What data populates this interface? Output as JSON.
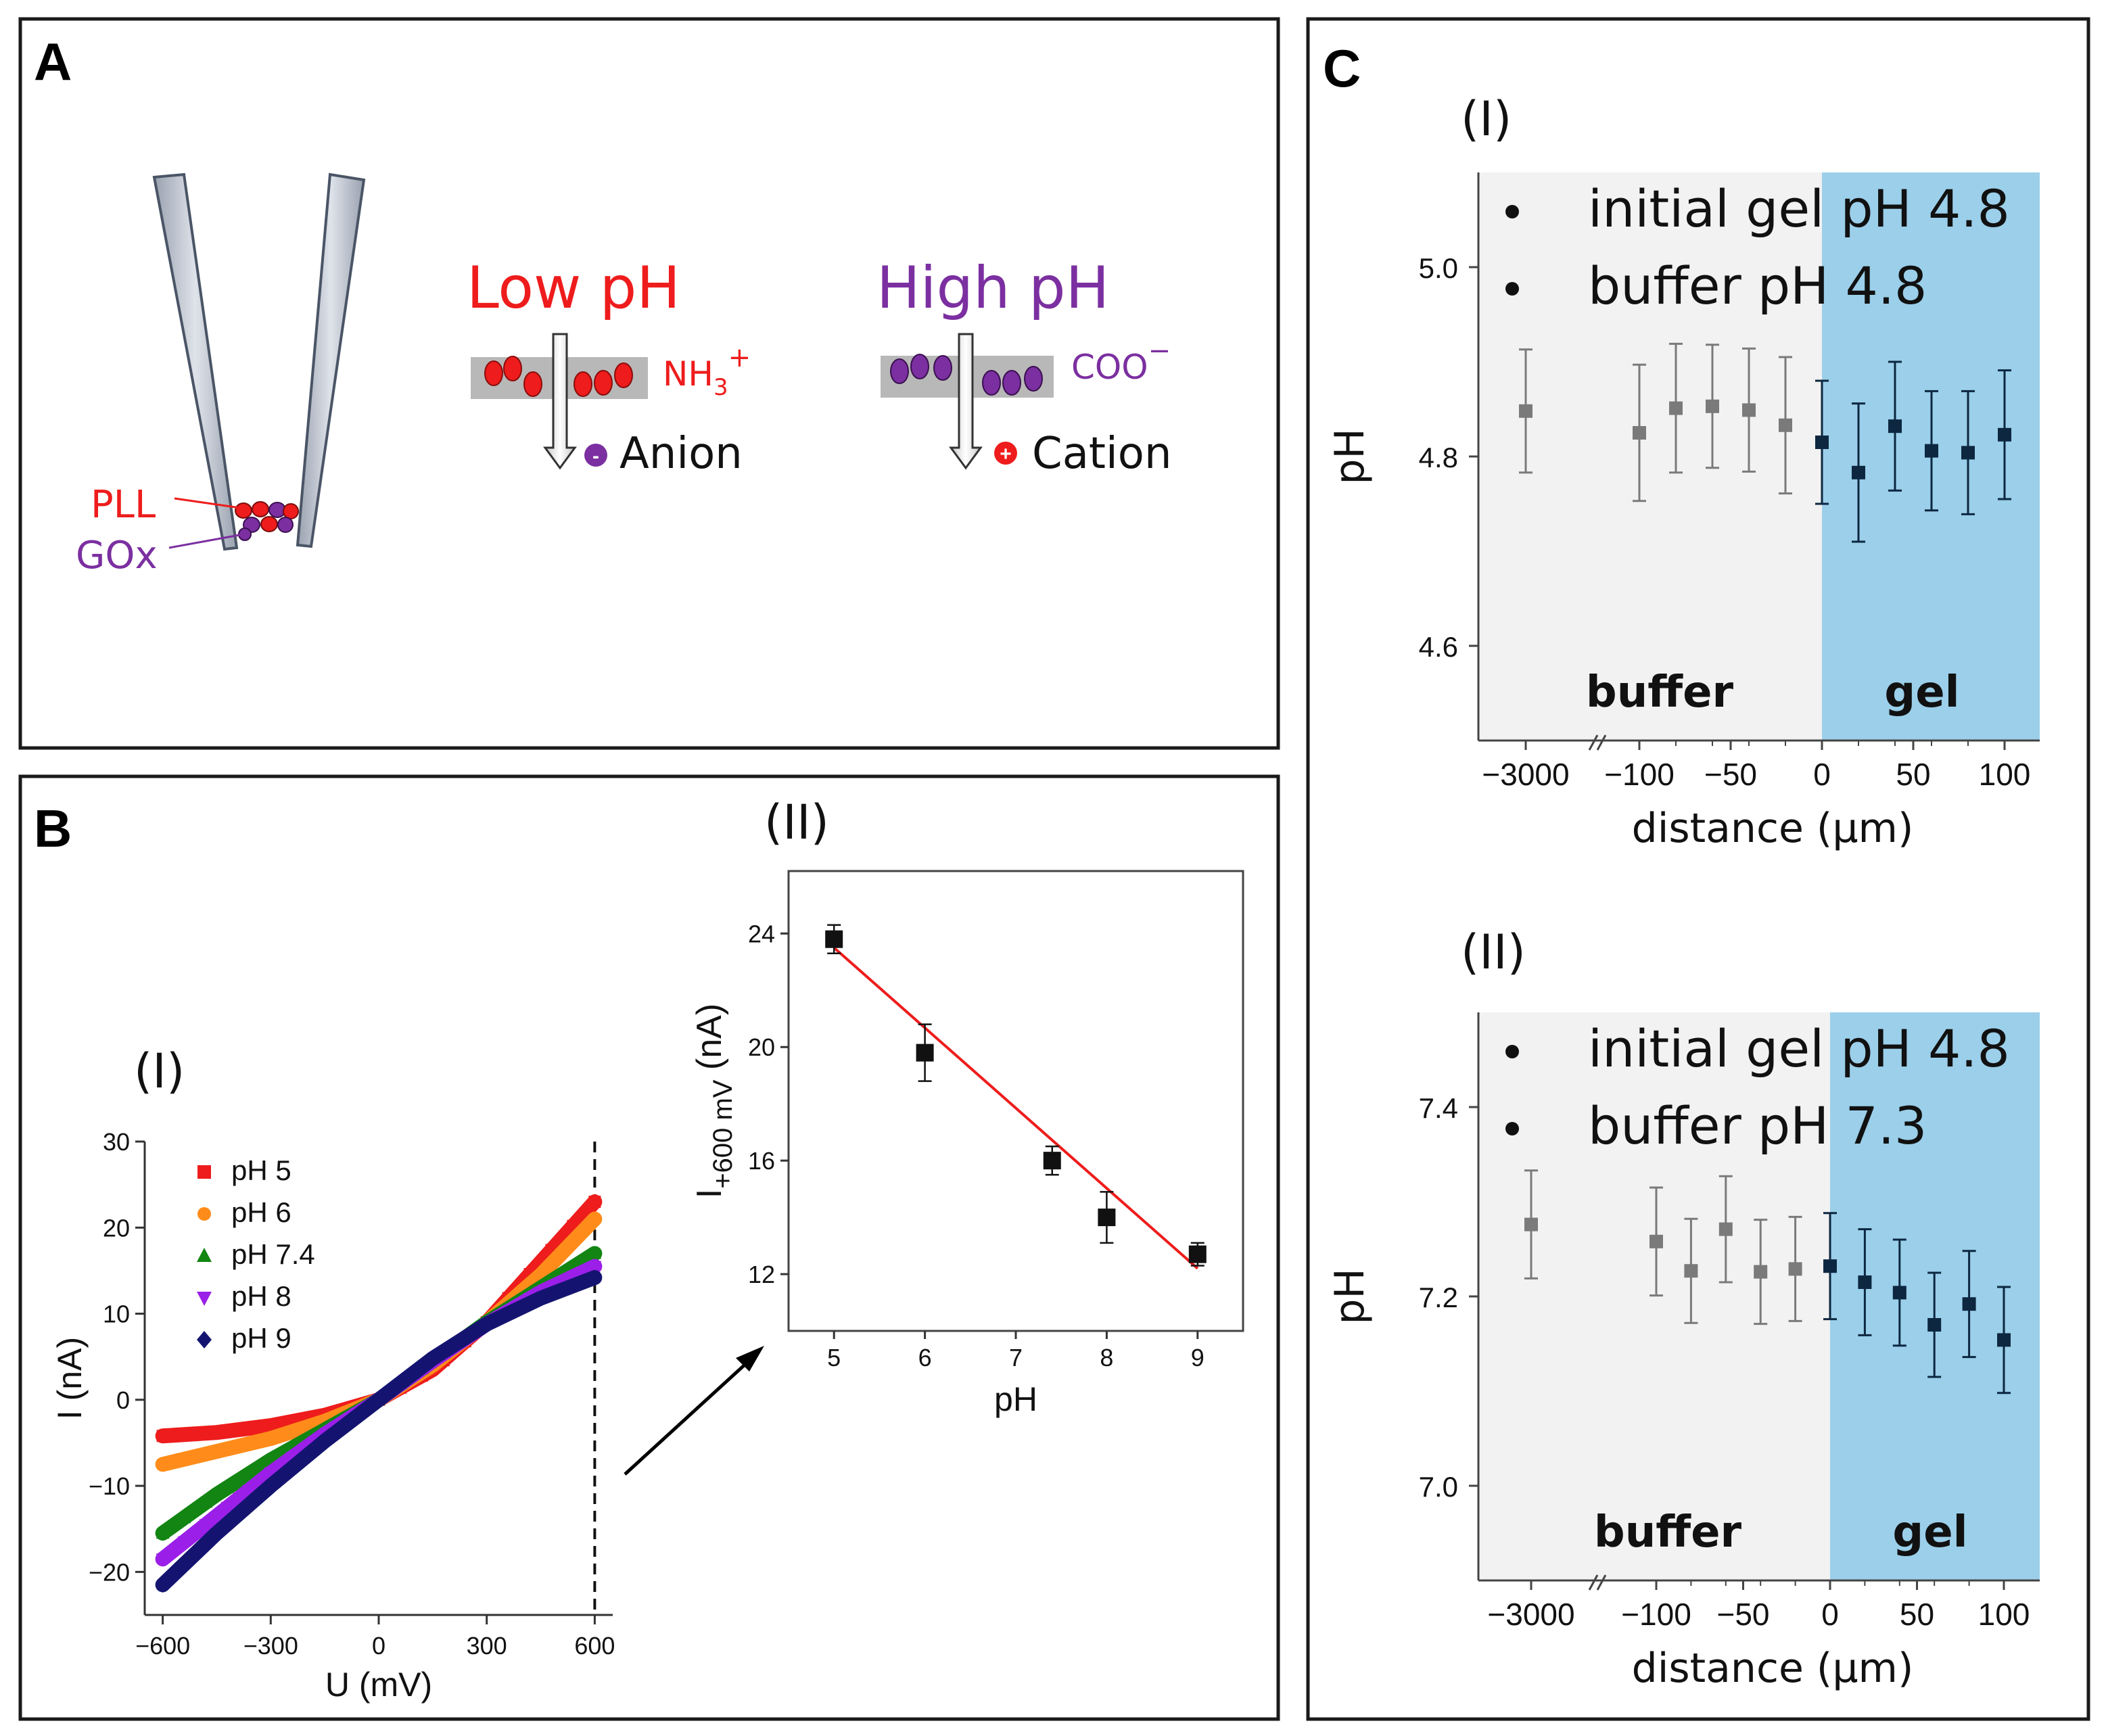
{
  "panels": {
    "A": {
      "letter": "A",
      "low_ph": "Low pH",
      "high_ph": "High pH",
      "nh3": "NH",
      "nh3_sub": "3",
      "nh3_sup": "+",
      "coo": "COO",
      "coo_sup": "−",
      "anion": "Anion",
      "cation": "Cation",
      "anion_sign": "-",
      "cation_sign": "+",
      "pll": "PLL",
      "gox": "GOx"
    },
    "B": {
      "letter": "B",
      "sub_i": "(I)",
      "sub_ii": "(II)"
    },
    "C": {
      "letter": "C",
      "sub_i": "(I)",
      "sub_ii": "(II)"
    }
  },
  "colors": {
    "red": "#ee1c1c",
    "purple": "#7b2fa0",
    "orange": "#ff8c1a",
    "green": "#128512",
    "violet": "#9b1fe8",
    "navy": "#141470",
    "grey_point": "#7a7a7a",
    "blue_point": "#0d2740",
    "gel_fill": "#9bcfea",
    "buffer_fill": "#f2f2f2"
  },
  "chart_data": [
    {
      "id": "B-I",
      "type": "line",
      "xlabel": "U (mV)",
      "ylabel": "I (nA)",
      "xlim": [
        -650,
        650
      ],
      "ylim": [
        -25,
        30
      ],
      "xticks": [
        -600,
        -300,
        0,
        300,
        600
      ],
      "xtick_labels": [
        "−600",
        "−300",
        "0",
        "300",
        "600"
      ],
      "yticks": [
        -20,
        -10,
        0,
        10,
        20,
        30
      ],
      "ytick_labels": [
        "−20",
        "−10",
        "0",
        "10",
        "20",
        "30"
      ],
      "marker_line_x": 600,
      "series": [
        {
          "name": "pH 5",
          "color": "#ee1c1c",
          "marker": "square",
          "x": [
            -600,
            -450,
            -300,
            -150,
            0,
            150,
            300,
            450,
            600
          ],
          "y": [
            -4.2,
            -3.8,
            -3.0,
            -1.8,
            0,
            3.5,
            9.0,
            16.0,
            23.0
          ]
        },
        {
          "name": "pH 6",
          "color": "#ff8c1a",
          "marker": "circle",
          "x": [
            -600,
            -450,
            -300,
            -150,
            0,
            150,
            300,
            450,
            600
          ],
          "y": [
            -7.5,
            -6.0,
            -4.5,
            -2.5,
            0,
            4.0,
            9.0,
            14.5,
            21.0
          ]
        },
        {
          "name": "pH 7.4",
          "color": "#128512",
          "marker": "triangle-up",
          "x": [
            -600,
            -450,
            -300,
            -150,
            0,
            150,
            300,
            450,
            600
          ],
          "y": [
            -15.5,
            -11.0,
            -7.0,
            -3.5,
            0,
            4.5,
            9.0,
            13.0,
            17.0
          ]
        },
        {
          "name": "pH 8",
          "color": "#9b1fe8",
          "marker": "triangle-down",
          "x": [
            -600,
            -450,
            -300,
            -150,
            0,
            150,
            300,
            450,
            600
          ],
          "y": [
            -18.5,
            -13.5,
            -8.5,
            -4.0,
            0,
            4.5,
            8.8,
            12.5,
            15.5
          ]
        },
        {
          "name": "pH 9",
          "color": "#141470",
          "marker": "diamond",
          "x": [
            -600,
            -450,
            -300,
            -150,
            0,
            150,
            300,
            450,
            600
          ],
          "y": [
            -21.5,
            -15.5,
            -10.0,
            -4.8,
            0,
            4.8,
            8.8,
            11.8,
            14.2
          ]
        }
      ]
    },
    {
      "id": "B-II",
      "type": "scatter",
      "xlabel": "pH",
      "ylabel_main": "I",
      "ylabel_sub": "+600 mV",
      "ylabel_unit": " (nA)",
      "xlim": [
        4.5,
        9.5
      ],
      "ylim": [
        10,
        26.2
      ],
      "xticks": [
        5,
        6,
        7,
        8,
        9
      ],
      "xtick_labels": [
        "5",
        "6",
        "7",
        "8",
        "9"
      ],
      "yticks": [
        12,
        16,
        20,
        24
      ],
      "ytick_labels": [
        "12",
        "16",
        "20",
        "24"
      ],
      "points": [
        {
          "x": 5,
          "y": 23.8,
          "err": 0.5
        },
        {
          "x": 6,
          "y": 19.8,
          "err": 1.0
        },
        {
          "x": 7.4,
          "y": 16.0,
          "err": 0.5
        },
        {
          "x": 8,
          "y": 14.0,
          "err": 0.9
        },
        {
          "x": 9,
          "y": 12.7,
          "err": 0.4
        }
      ],
      "fit": {
        "x": [
          5,
          9
        ],
        "y": [
          23.5,
          12.2
        ],
        "color": "#ee1c1c"
      }
    },
    {
      "id": "C-I",
      "type": "scatter",
      "xlabel": "distance (µm)",
      "ylabel": "pH",
      "ylim": [
        4.5,
        5.1
      ],
      "yticks": [
        4.6,
        4.8,
        5.0
      ],
      "ytick_labels": [
        "4.6",
        "4.8",
        "5.0"
      ],
      "xtick_labels": [
        "−3000",
        "−100",
        "−50",
        "0",
        "50",
        "100"
      ],
      "legend": [
        "initial gel pH 4.8",
        "buffer pH 4.8"
      ],
      "region_labels": {
        "buffer": "buffer",
        "gel": "gel"
      },
      "buffer_points": [
        {
          "x": -3000,
          "y": 4.848,
          "err": 0.065
        },
        {
          "x": -100,
          "y": 4.825,
          "err": 0.072
        },
        {
          "x": -80,
          "y": 4.851,
          "err": 0.068
        },
        {
          "x": -60,
          "y": 4.853,
          "err": 0.065
        },
        {
          "x": -40,
          "y": 4.849,
          "err": 0.065
        },
        {
          "x": -20,
          "y": 4.833,
          "err": 0.072
        }
      ],
      "gel_points": [
        {
          "x": 0,
          "y": 4.815,
          "err": 0.065
        },
        {
          "x": 20,
          "y": 4.783,
          "err": 0.073
        },
        {
          "x": 40,
          "y": 4.832,
          "err": 0.068
        },
        {
          "x": 60,
          "y": 4.806,
          "err": 0.063
        },
        {
          "x": 80,
          "y": 4.804,
          "err": 0.065
        },
        {
          "x": 100,
          "y": 4.823,
          "err": 0.068
        }
      ]
    },
    {
      "id": "C-II",
      "type": "scatter",
      "xlabel": "distance (µm)",
      "ylabel": "pH",
      "ylim": [
        6.9,
        7.5
      ],
      "yticks": [
        7.0,
        7.2,
        7.4
      ],
      "ytick_labels": [
        "7.0",
        "7.2",
        "7.4"
      ],
      "xtick_labels": [
        "−3000",
        "−100",
        "−50",
        "0",
        "50",
        "100"
      ],
      "legend": [
        "initial gel pH 4.8",
        "buffer pH 7.3"
      ],
      "region_labels": {
        "buffer": "buffer",
        "gel": "gel"
      },
      "buffer_points": [
        {
          "x": -3000,
          "y": 7.276,
          "err": 0.057
        },
        {
          "x": -100,
          "y": 7.258,
          "err": 0.057
        },
        {
          "x": -80,
          "y": 7.227,
          "err": 0.055
        },
        {
          "x": -60,
          "y": 7.271,
          "err": 0.056
        },
        {
          "x": -40,
          "y": 7.226,
          "err": 0.055
        },
        {
          "x": -20,
          "y": 7.229,
          "err": 0.055
        }
      ],
      "gel_points": [
        {
          "x": 0,
          "y": 7.232,
          "err": 0.056
        },
        {
          "x": 20,
          "y": 7.215,
          "err": 0.056
        },
        {
          "x": 40,
          "y": 7.204,
          "err": 0.056
        },
        {
          "x": 60,
          "y": 7.17,
          "err": 0.055
        },
        {
          "x": 80,
          "y": 7.192,
          "err": 0.056
        },
        {
          "x": 100,
          "y": 7.154,
          "err": 0.056
        }
      ]
    }
  ]
}
